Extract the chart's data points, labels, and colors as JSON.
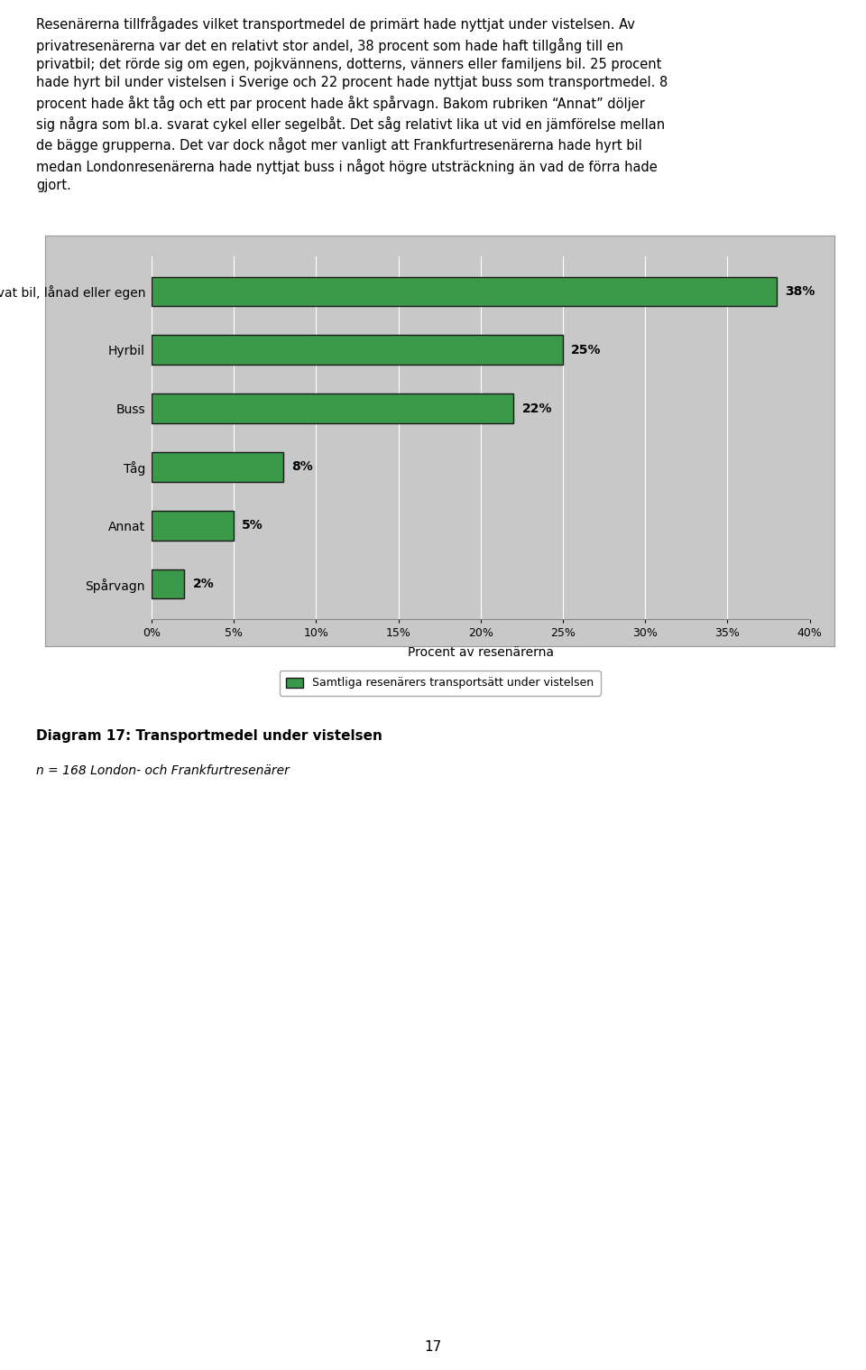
{
  "categories": [
    "Privat bil, lånad eller egen",
    "Hyrbil",
    "Buss",
    "Tåg",
    "Annat",
    "Spårvagn"
  ],
  "values": [
    38,
    25,
    22,
    8,
    5,
    2
  ],
  "bar_color": "#3a9a4a",
  "bar_edge_color": "#1a1a1a",
  "plot_bg_color": "#c8c8c8",
  "xlabel": "Procent av resenärerna",
  "xlabel_fontsize": 10,
  "xlim": [
    0,
    40
  ],
  "xticks": [
    0,
    5,
    10,
    15,
    20,
    25,
    30,
    35,
    40
  ],
  "xtick_labels": [
    "0%",
    "5%",
    "10%",
    "15%",
    "20%",
    "25%",
    "30%",
    "35%",
    "40%"
  ],
  "legend_label": "Samtliga resenärers transportsätt under vistelsen",
  "legend_fontsize": 9,
  "caption_title": "Diagram 17: Transportmedel under vistelsen",
  "caption_n": "n = 168 London- och Frankfurtresenärer",
  "bar_height": 0.5,
  "label_fontsize": 10,
  "tick_fontsize": 9,
  "category_fontsize": 10,
  "page_number": "17",
  "top_text": "Resenärerna tillfrågades vilket transportmedel de primärt hade nyttjat under vistelsen. Av privatresenärerna var det en relativt stor andel, 38 procent som hade haft tillgång till en privatbil; det rörde sig om egen, pojkvännens, dotterns, vänners eller familjens bil. 25 procent hade hyrt bil under vistelsen i Sverige och 22 procent hade nyttjat buss som transportmedel. 8 procent hade åkt tåg och ett par procent hade åkt spårvagn. Bakom rubriken “Annat” döljer sig några som bl.a. svarat cykel eller segelbåt. Det såg relativt lika ut vid en jämförelse mellan de bägge grupperna. Det var dock något mer vanligt att Frankfurtresenärerna hade hyrt bil medan Londonresenärerna hade nyttjat buss i något högre utsträckning än vad de förra hade gjort."
}
